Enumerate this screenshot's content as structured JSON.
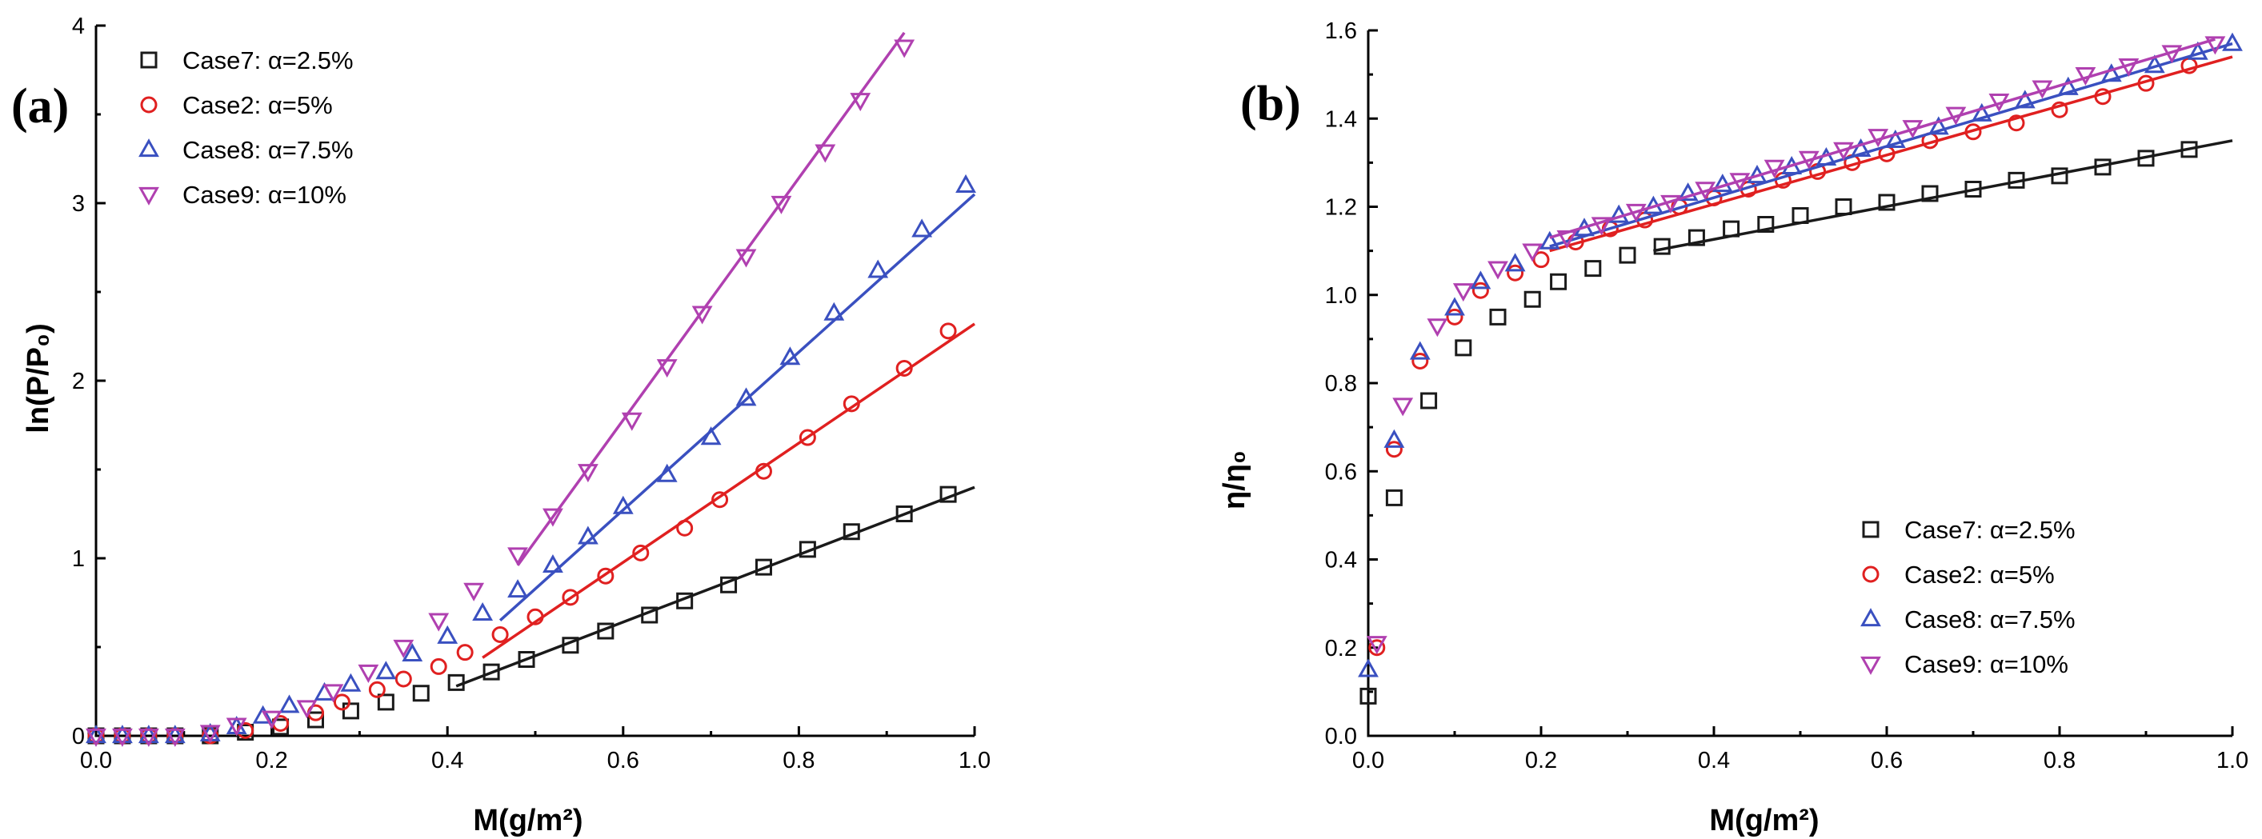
{
  "chart_data": [
    {
      "type": "scatter",
      "panel": "(a)",
      "title": "",
      "xlabel": "M(g/m²)",
      "ylabel": "ln(P/P₀)",
      "xlim": [
        0.0,
        1.0
      ],
      "ylim": [
        0,
        4
      ],
      "x_ticks": [
        "0.0",
        "0.2",
        "0.4",
        "0.6",
        "0.8",
        "1.0"
      ],
      "y_ticks": [
        "0",
        "1",
        "2",
        "3",
        "4"
      ],
      "legend_position": "top-left",
      "series": [
        {
          "name": "Case7: α=2.5%",
          "marker": "square",
          "color": "#1a1a1a",
          "x": [
            0.0,
            0.03,
            0.06,
            0.09,
            0.13,
            0.17,
            0.21,
            0.25,
            0.29,
            0.33,
            0.37,
            0.41,
            0.45,
            0.49,
            0.54,
            0.58,
            0.63,
            0.67,
            0.72,
            0.76,
            0.81,
            0.86,
            0.92,
            0.97
          ],
          "y": [
            0.0,
            0.0,
            0.0,
            0.0,
            0.0,
            0.02,
            0.05,
            0.09,
            0.14,
            0.19,
            0.24,
            0.3,
            0.36,
            0.43,
            0.51,
            0.59,
            0.68,
            0.76,
            0.85,
            0.95,
            1.05,
            1.15,
            1.25,
            1.36
          ],
          "fit": {
            "x": [
              0.41,
              1.0
            ],
            "y": [
              0.28,
              1.4
            ]
          }
        },
        {
          "name": "Case2: α=5%",
          "marker": "circle",
          "color": "#e02020",
          "x": [
            0.0,
            0.03,
            0.06,
            0.09,
            0.13,
            0.17,
            0.21,
            0.25,
            0.28,
            0.32,
            0.35,
            0.39,
            0.42,
            0.46,
            0.5,
            0.54,
            0.58,
            0.62,
            0.67,
            0.71,
            0.76,
            0.81,
            0.86,
            0.92,
            0.97
          ],
          "y": [
            0.0,
            0.0,
            0.0,
            0.0,
            0.0,
            0.03,
            0.07,
            0.13,
            0.19,
            0.26,
            0.32,
            0.39,
            0.47,
            0.57,
            0.67,
            0.78,
            0.9,
            1.03,
            1.17,
            1.33,
            1.49,
            1.68,
            1.87,
            2.07,
            2.28
          ],
          "fit": {
            "x": [
              0.44,
              1.0
            ],
            "y": [
              0.44,
              2.32
            ]
          }
        },
        {
          "name": "Case8: α=7.5%",
          "marker": "triangle-up",
          "color": "#3a50c0",
          "x": [
            0.0,
            0.03,
            0.06,
            0.09,
            0.13,
            0.16,
            0.19,
            0.22,
            0.26,
            0.29,
            0.33,
            0.36,
            0.4,
            0.44,
            0.48,
            0.52,
            0.56,
            0.6,
            0.65,
            0.7,
            0.74,
            0.79,
            0.84,
            0.89,
            0.94,
            0.99
          ],
          "y": [
            0.0,
            0.0,
            0.0,
            0.0,
            0.01,
            0.05,
            0.11,
            0.17,
            0.24,
            0.29,
            0.36,
            0.46,
            0.56,
            0.69,
            0.82,
            0.96,
            1.12,
            1.29,
            1.47,
            1.68,
            1.9,
            2.13,
            2.38,
            2.62,
            2.85,
            3.1
          ],
          "fit": {
            "x": [
              0.46,
              1.0
            ],
            "y": [
              0.65,
              3.05
            ]
          }
        },
        {
          "name": "Case9: α=10%",
          "marker": "triangle-down",
          "color": "#b040b0",
          "x": [
            0.0,
            0.03,
            0.06,
            0.09,
            0.13,
            0.16,
            0.2,
            0.24,
            0.27,
            0.31,
            0.35,
            0.39,
            0.43,
            0.48,
            0.52,
            0.56,
            0.61,
            0.65,
            0.69,
            0.74,
            0.78,
            0.83,
            0.87,
            0.92
          ],
          "y": [
            0.0,
            0.0,
            0.0,
            0.0,
            0.02,
            0.06,
            0.1,
            0.16,
            0.25,
            0.36,
            0.5,
            0.65,
            0.82,
            1.02,
            1.24,
            1.49,
            1.78,
            2.08,
            2.38,
            2.7,
            3.0,
            3.29,
            3.58,
            3.88
          ],
          "fit": {
            "x": [
              0.48,
              0.92
            ],
            "y": [
              0.96,
              3.96
            ]
          }
        }
      ]
    },
    {
      "type": "scatter",
      "panel": "(b)",
      "title": "",
      "xlabel": "M(g/m²)",
      "ylabel": "η/η₀",
      "xlim": [
        0.0,
        1.0
      ],
      "ylim": [
        0.0,
        1.6
      ],
      "x_ticks": [
        "0.0",
        "0.2",
        "0.4",
        "0.6",
        "0.8",
        "1.0"
      ],
      "y_ticks": [
        "0.0",
        "0.2",
        "0.4",
        "0.6",
        "0.8",
        "1.0",
        "1.2",
        "1.4",
        "1.6"
      ],
      "legend_position": "bottom-right",
      "series": [
        {
          "name": "Case7: α=2.5%",
          "marker": "square",
          "color": "#1a1a1a",
          "x": [
            0.0,
            0.03,
            0.07,
            0.11,
            0.15,
            0.19,
            0.22,
            0.26,
            0.3,
            0.34,
            0.38,
            0.42,
            0.46,
            0.5,
            0.55,
            0.6,
            0.65,
            0.7,
            0.75,
            0.8,
            0.85,
            0.9,
            0.95
          ],
          "y": [
            0.09,
            0.54,
            0.76,
            0.88,
            0.95,
            0.99,
            1.03,
            1.06,
            1.09,
            1.11,
            1.13,
            1.15,
            1.16,
            1.18,
            1.2,
            1.21,
            1.23,
            1.24,
            1.26,
            1.27,
            1.29,
            1.31,
            1.33
          ],
          "fit": {
            "x": [
              0.33,
              1.0
            ],
            "y": [
              1.1,
              1.35
            ]
          }
        },
        {
          "name": "Case2: α=5%",
          "marker": "circle",
          "color": "#e02020",
          "x": [
            0.01,
            0.03,
            0.06,
            0.1,
            0.13,
            0.17,
            0.2,
            0.24,
            0.28,
            0.32,
            0.36,
            0.4,
            0.44,
            0.48,
            0.52,
            0.56,
            0.6,
            0.65,
            0.7,
            0.75,
            0.8,
            0.85,
            0.9,
            0.95
          ],
          "y": [
            0.2,
            0.65,
            0.85,
            0.95,
            1.01,
            1.05,
            1.08,
            1.12,
            1.15,
            1.17,
            1.2,
            1.22,
            1.24,
            1.26,
            1.28,
            1.3,
            1.32,
            1.35,
            1.37,
            1.39,
            1.42,
            1.45,
            1.48,
            1.52
          ],
          "fit": {
            "x": [
              0.21,
              1.0
            ],
            "y": [
              1.1,
              1.54
            ]
          }
        },
        {
          "name": "Case8: α=7.5%",
          "marker": "triangle-up",
          "color": "#3a50c0",
          "x": [
            0.0,
            0.03,
            0.06,
            0.1,
            0.13,
            0.17,
            0.21,
            0.25,
            0.29,
            0.33,
            0.37,
            0.41,
            0.45,
            0.49,
            0.53,
            0.57,
            0.61,
            0.66,
            0.71,
            0.76,
            0.81,
            0.86,
            0.91,
            0.96,
            1.0
          ],
          "y": [
            0.15,
            0.67,
            0.87,
            0.97,
            1.03,
            1.07,
            1.12,
            1.15,
            1.18,
            1.2,
            1.23,
            1.25,
            1.27,
            1.29,
            1.31,
            1.33,
            1.35,
            1.38,
            1.41,
            1.44,
            1.47,
            1.5,
            1.52,
            1.55,
            1.57
          ],
          "fit": {
            "x": [
              0.21,
              1.0
            ],
            "y": [
              1.11,
              1.57
            ]
          }
        },
        {
          "name": "Case9: α=10%",
          "marker": "triangle-down",
          "color": "#b040b0",
          "x": [
            0.01,
            0.04,
            0.08,
            0.11,
            0.15,
            0.19,
            0.23,
            0.27,
            0.31,
            0.35,
            0.39,
            0.43,
            0.47,
            0.51,
            0.55,
            0.59,
            0.63,
            0.68,
            0.73,
            0.78,
            0.83,
            0.88,
            0.93,
            0.98
          ],
          "y": [
            0.21,
            0.75,
            0.93,
            1.01,
            1.06,
            1.1,
            1.13,
            1.16,
            1.19,
            1.21,
            1.24,
            1.26,
            1.29,
            1.31,
            1.33,
            1.36,
            1.38,
            1.41,
            1.44,
            1.47,
            1.5,
            1.52,
            1.55,
            1.57
          ],
          "fit": {
            "x": [
              0.21,
              0.98
            ],
            "y": [
              1.13,
              1.58
            ]
          }
        }
      ]
    }
  ]
}
